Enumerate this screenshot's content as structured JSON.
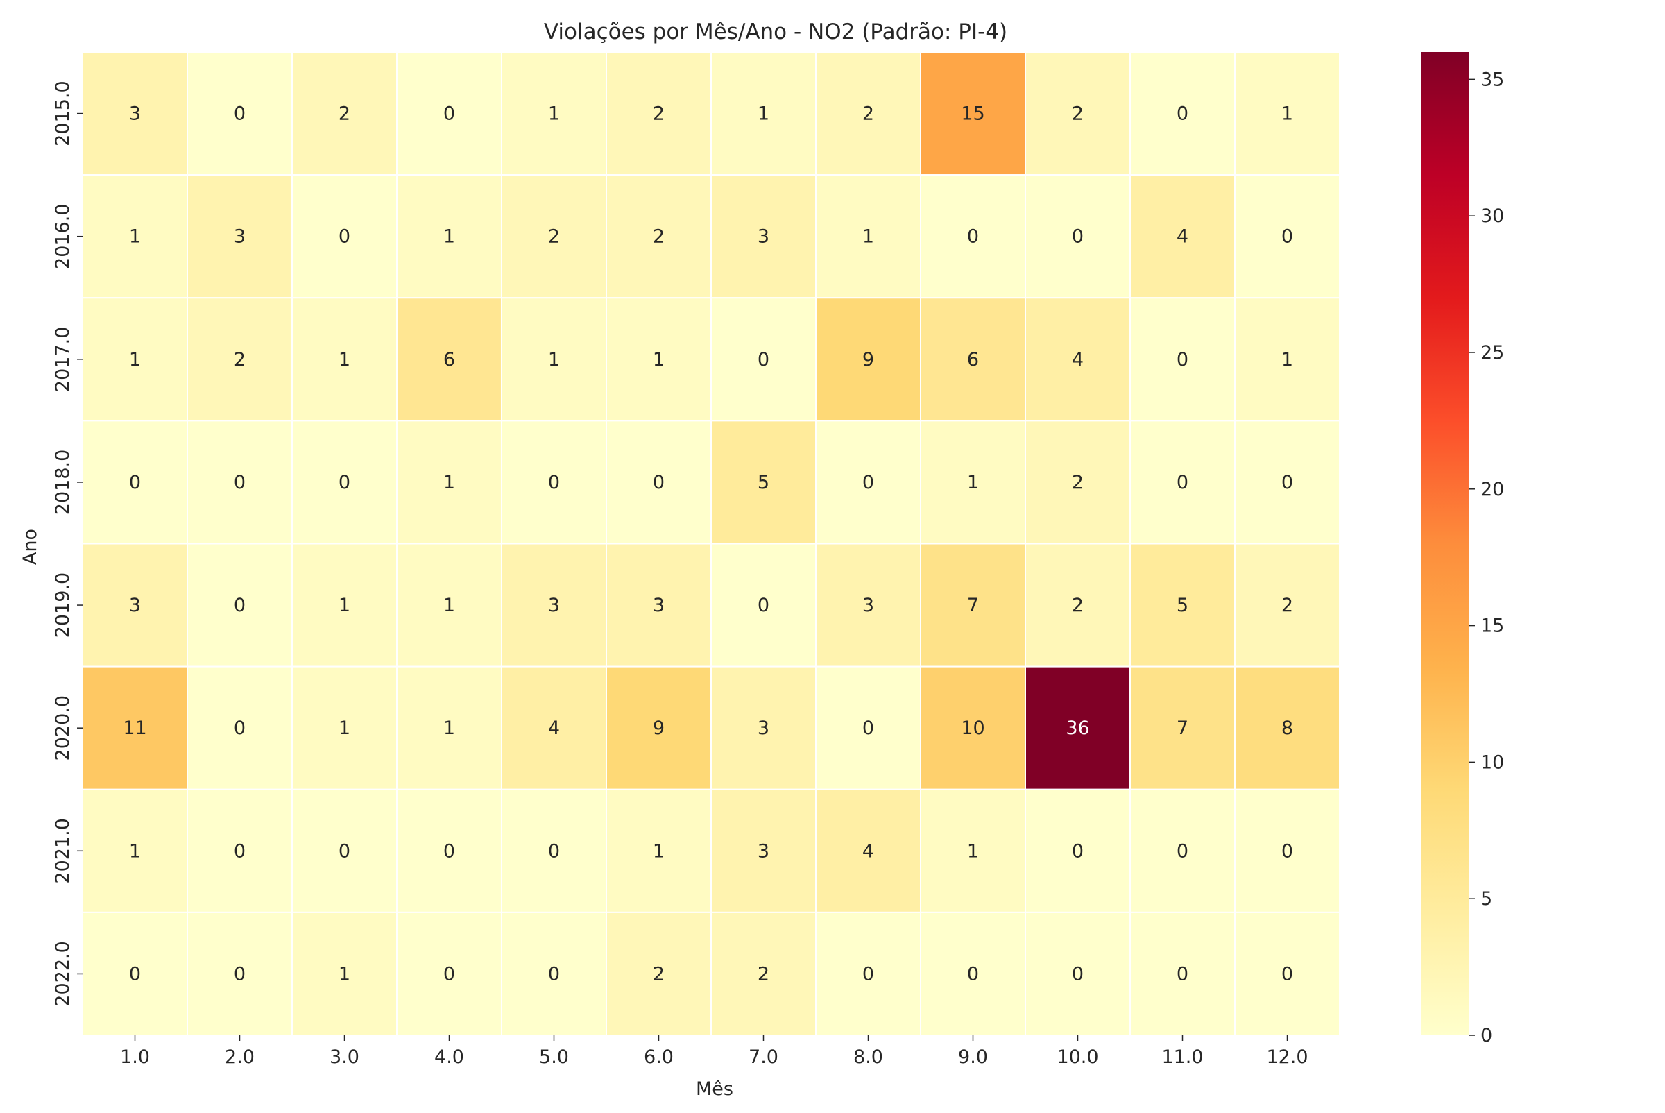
{
  "chart_data": {
    "type": "heatmap",
    "title": "Violações por Mês/Ano - NO2 (Padrão: PI-4)",
    "xlabel": "Mês",
    "ylabel": "Ano",
    "x_categories": [
      "1.0",
      "2.0",
      "3.0",
      "4.0",
      "5.0",
      "6.0",
      "7.0",
      "8.0",
      "9.0",
      "10.0",
      "11.0",
      "12.0"
    ],
    "y_categories": [
      "2015.0",
      "2016.0",
      "2017.0",
      "2018.0",
      "2019.0",
      "2020.0",
      "2021.0",
      "2022.0"
    ],
    "values": [
      [
        3,
        0,
        2,
        0,
        1,
        2,
        1,
        2,
        15,
        2,
        0,
        1
      ],
      [
        1,
        3,
        0,
        1,
        2,
        2,
        3,
        1,
        0,
        0,
        4,
        0
      ],
      [
        1,
        2,
        1,
        6,
        1,
        1,
        0,
        9,
        6,
        4,
        0,
        1
      ],
      [
        0,
        0,
        0,
        1,
        0,
        0,
        5,
        0,
        1,
        2,
        0,
        0
      ],
      [
        3,
        0,
        1,
        1,
        3,
        3,
        0,
        3,
        7,
        2,
        5,
        2
      ],
      [
        11,
        0,
        1,
        1,
        4,
        9,
        3,
        0,
        10,
        36,
        7,
        8
      ],
      [
        1,
        0,
        0,
        0,
        0,
        1,
        3,
        4,
        1,
        0,
        0,
        0
      ],
      [
        0,
        0,
        1,
        0,
        0,
        2,
        2,
        0,
        0,
        0,
        0,
        0
      ]
    ],
    "colormap": "YlOrRd",
    "colorbar": {
      "vmin": 0,
      "vmax": 36,
      "ticks": [
        "0",
        "5",
        "10",
        "15",
        "20",
        "25",
        "30",
        "35"
      ]
    },
    "grid": true,
    "cell_border_color": "#ffffff"
  }
}
